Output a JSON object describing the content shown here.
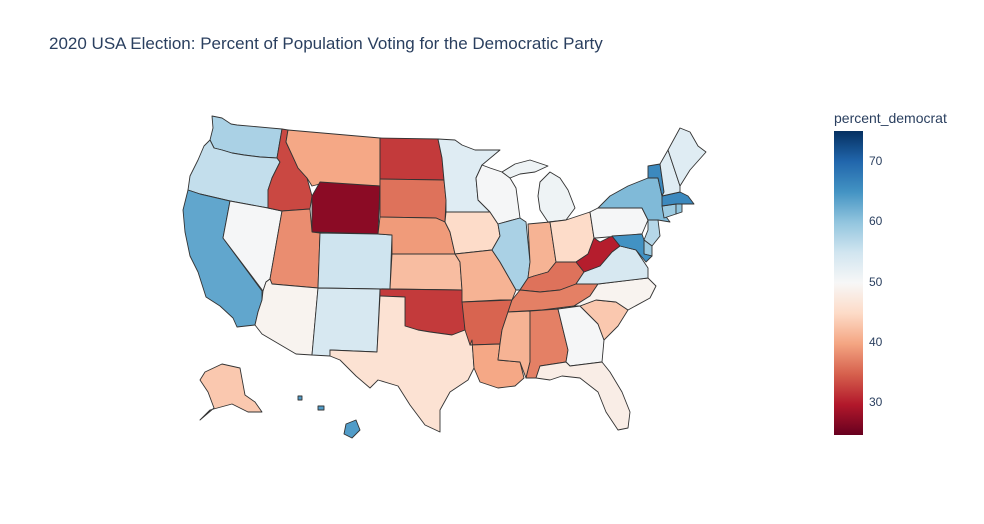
{
  "title": "2020 USA Election: Percent of Population Voting for the Democratic Party",
  "colorbar": {
    "title": "percent_democrat",
    "ticks": [
      "70",
      "60",
      "50",
      "40",
      "30"
    ],
    "tick_values": [
      70,
      60,
      50,
      40,
      30
    ],
    "range": [
      24.6,
      75
    ],
    "colorscale": [
      "#67001f",
      "#b2182b",
      "#d6604d",
      "#f4a582",
      "#fddbc7",
      "#f7f7f7",
      "#d1e5f0",
      "#92c5de",
      "#4393c3",
      "#2166ac",
      "#053061"
    ]
  },
  "chart_data": {
    "type": "choropleth",
    "title": "2020 USA Election: Percent of Population Voting for the Democratic Party",
    "color_variable": "percent_democrat",
    "states": [
      {
        "state": "WA",
        "value": 58
      },
      {
        "state": "OR",
        "value": 56
      },
      {
        "state": "CA",
        "value": 63
      },
      {
        "state": "NV",
        "value": 50
      },
      {
        "state": "ID",
        "value": 33
      },
      {
        "state": "MT",
        "value": 40
      },
      {
        "state": "WY",
        "value": 27
      },
      {
        "state": "UT",
        "value": 38
      },
      {
        "state": "AZ",
        "value": 49
      },
      {
        "state": "CO",
        "value": 55
      },
      {
        "state": "NM",
        "value": 54
      },
      {
        "state": "ND",
        "value": 32
      },
      {
        "state": "SD",
        "value": 36
      },
      {
        "state": "NE",
        "value": 39
      },
      {
        "state": "KS",
        "value": 42
      },
      {
        "state": "OK",
        "value": 32
      },
      {
        "state": "TX",
        "value": 46
      },
      {
        "state": "MN",
        "value": 53
      },
      {
        "state": "IA",
        "value": 45
      },
      {
        "state": "MO",
        "value": 41
      },
      {
        "state": "AR",
        "value": 35
      },
      {
        "state": "LA",
        "value": 40
      },
      {
        "state": "WI",
        "value": 50
      },
      {
        "state": "IL",
        "value": 58
      },
      {
        "state": "MI",
        "value": 51
      },
      {
        "state": "IN",
        "value": 41
      },
      {
        "state": "OH",
        "value": 45
      },
      {
        "state": "KY",
        "value": 36
      },
      {
        "state": "TN",
        "value": 37
      },
      {
        "state": "MS",
        "value": 41
      },
      {
        "state": "AL",
        "value": 37
      },
      {
        "state": "GA",
        "value": 50
      },
      {
        "state": "FL",
        "value": 48
      },
      {
        "state": "SC",
        "value": 43
      },
      {
        "state": "NC",
        "value": 49
      },
      {
        "state": "VA",
        "value": 54
      },
      {
        "state": "WV",
        "value": 30
      },
      {
        "state": "PA",
        "value": 50
      },
      {
        "state": "NY",
        "value": 61
      },
      {
        "state": "VT",
        "value": 66
      },
      {
        "state": "NH",
        "value": 53
      },
      {
        "state": "ME",
        "value": 53
      },
      {
        "state": "MA",
        "value": 66
      },
      {
        "state": "RI",
        "value": 60
      },
      {
        "state": "CT",
        "value": 59
      },
      {
        "state": "NJ",
        "value": 57
      },
      {
        "state": "DE",
        "value": 59
      },
      {
        "state": "MD",
        "value": 65
      },
      {
        "state": "DC",
        "value": 92
      },
      {
        "state": "AK",
        "value": 43
      },
      {
        "state": "HI",
        "value": 64
      }
    ]
  }
}
